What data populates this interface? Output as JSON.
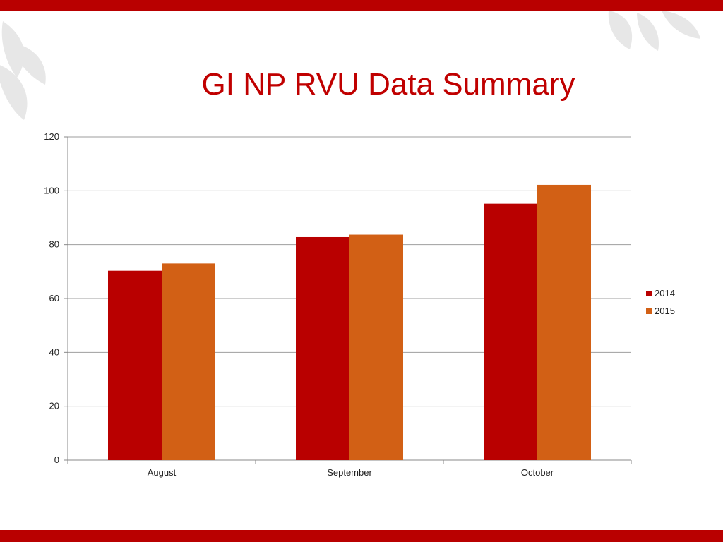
{
  "slide": {
    "title": "GI NP RVU Data Summary"
  },
  "colors": {
    "band": "#b90000",
    "title": "#c00000",
    "series_2014": "#b90000",
    "series_2015": "#d26015",
    "gridline": "#9e9e9e",
    "axis": "#888888",
    "leaf": "#e7e7e7"
  },
  "chart_data": {
    "type": "bar",
    "title": "",
    "xlabel": "",
    "ylabel": "",
    "categories": [
      "August",
      "September",
      "October"
    ],
    "series": [
      {
        "name": "2014",
        "values": [
          70.3,
          82.8,
          95.2
        ]
      },
      {
        "name": "2015",
        "values": [
          73.0,
          83.7,
          102.2
        ]
      }
    ],
    "ylim": [
      0,
      120
    ],
    "yticks": [
      0,
      20,
      40,
      60,
      80,
      100,
      120
    ],
    "grid": true,
    "legend_position": "right"
  }
}
